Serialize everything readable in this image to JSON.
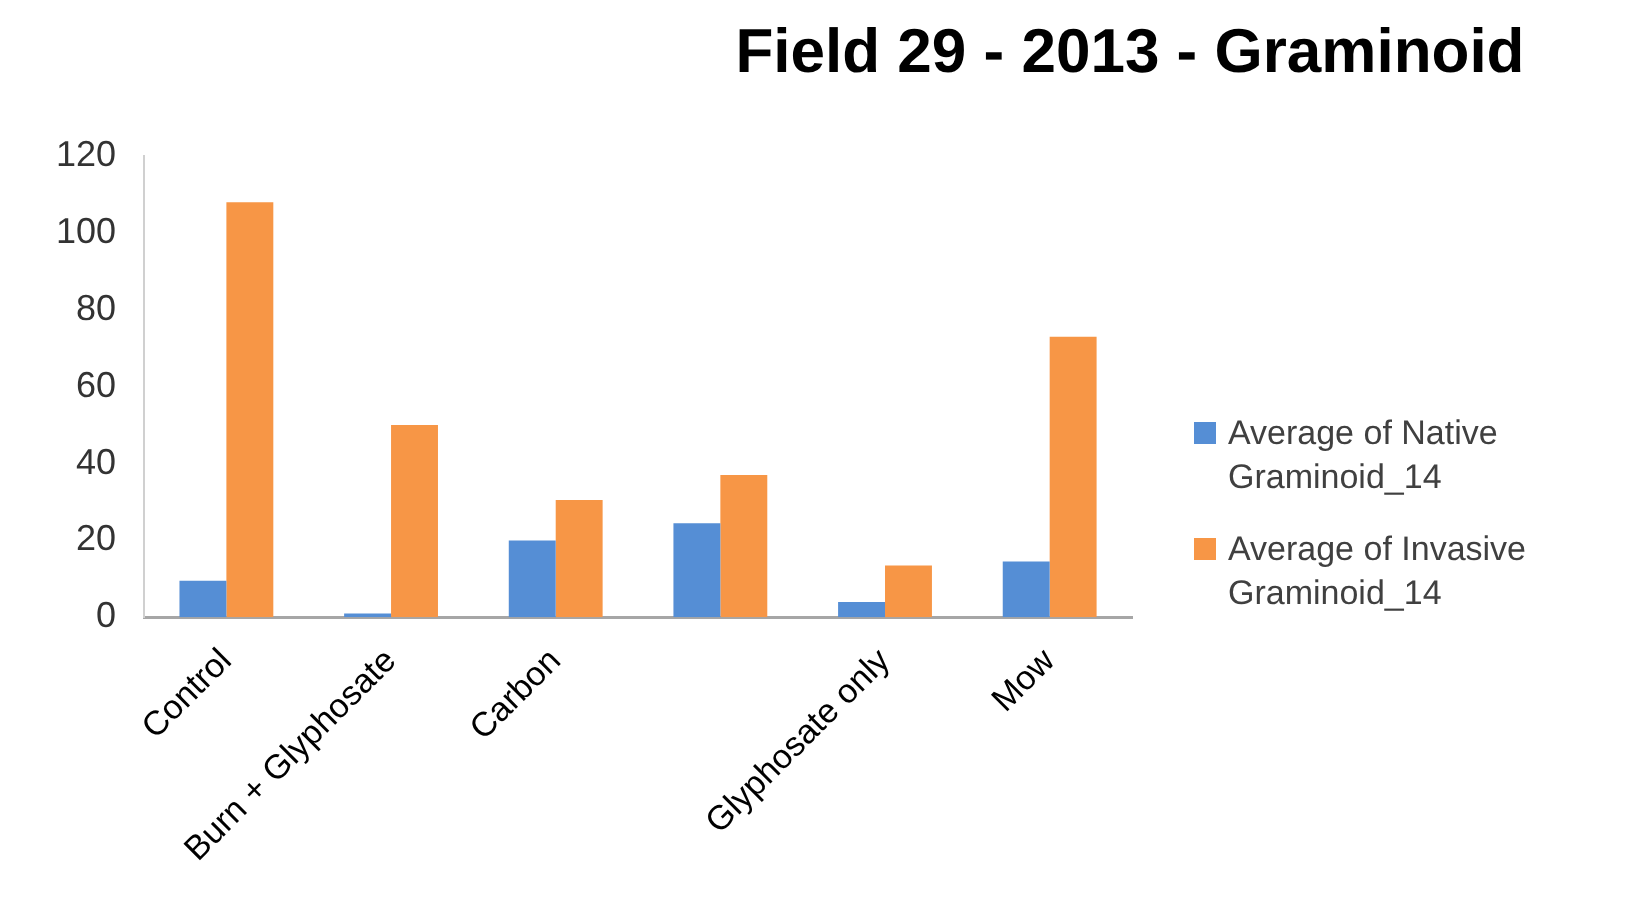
{
  "chart_data": {
    "type": "bar",
    "title": "Field 29 - 2013 - Graminoid",
    "categories": [
      "Control",
      "Burn + Glyphosate",
      "Carbon",
      null,
      "Glyphosate only",
      "Mow"
    ],
    "series": [
      {
        "name": "Average of Native Graminoid_14",
        "color": "#558ed5",
        "values": [
          9.5,
          1,
          20,
          24.5,
          4,
          14.5
        ]
      },
      {
        "name": "Average of Invasive Graminoid_14",
        "color": "#f79646",
        "values": [
          108,
          50,
          30.5,
          37,
          13.5,
          73
        ]
      }
    ],
    "ylim": [
      0,
      120
    ],
    "yticks": [
      0,
      20,
      40,
      60,
      80,
      100,
      120
    ],
    "legend": "right"
  }
}
